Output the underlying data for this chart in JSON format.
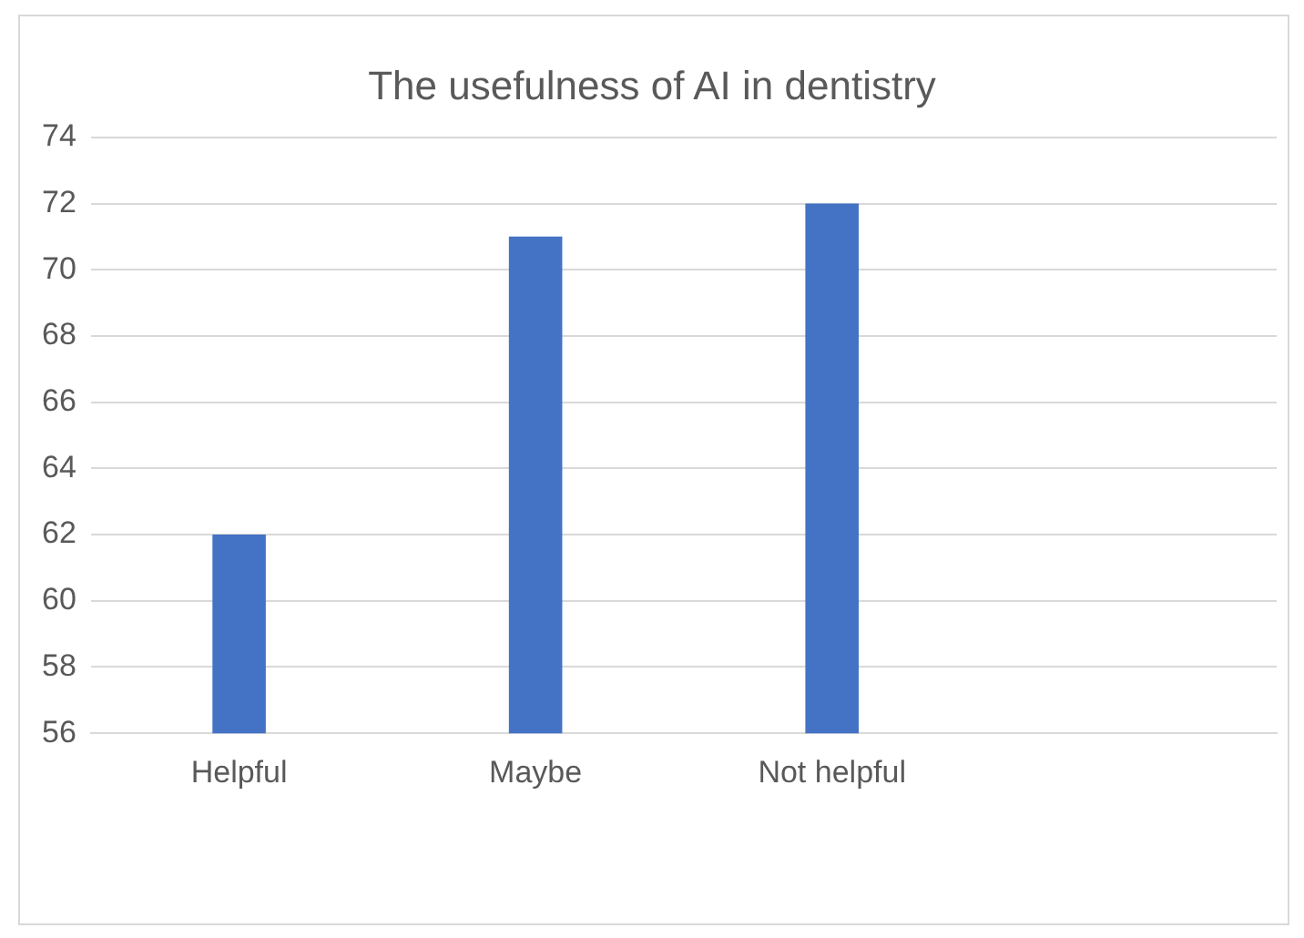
{
  "chart_data": {
    "type": "bar",
    "title": "The usefulness of AI in dentistry",
    "categories": [
      "Helpful",
      "Maybe",
      "Not helpful",
      null
    ],
    "values": [
      62,
      71,
      72,
      null
    ],
    "color": "#4472c4",
    "ylim": [
      56,
      74
    ],
    "yticks": [
      56,
      58,
      60,
      62,
      64,
      66,
      68,
      70,
      72,
      74
    ],
    "grid": "y"
  }
}
